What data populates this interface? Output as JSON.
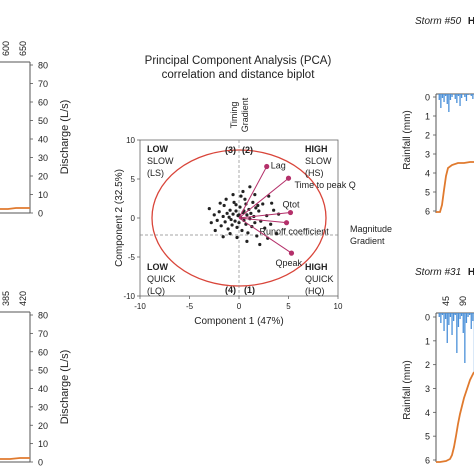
{
  "colors": {
    "orange": "#e07a2e",
    "blue": "#4a90d9",
    "circle": "#d9453a",
    "vector": "#b4306a",
    "dots": "#222222",
    "grid": "#cccccc"
  },
  "left_top": {
    "ticks_top": [
      "600",
      "650"
    ],
    "ylabel": "Discharge (L/s)",
    "yticks": [
      "80",
      "70",
      "60",
      "50",
      "40",
      "30",
      "20",
      "10",
      "0"
    ]
  },
  "left_bottom": {
    "ticks_top": [
      "385",
      "420"
    ],
    "ylabel": "Discharge (L/s)",
    "yticks": [
      "80",
      "70",
      "60",
      "50",
      "40",
      "30",
      "20",
      "10",
      "0"
    ]
  },
  "pca": {
    "title_line1": "Principal Component Analysis (PCA)",
    "title_line2": "correlation and distance biplot",
    "timing_line1": "Timing",
    "timing_line2": "Gradient",
    "magnitude_line1": "Magnitude",
    "magnitude_line2": "Gradient",
    "q_tl_1": "LOW",
    "q_tl_2": "SLOW",
    "q_tl_3": "(LS)",
    "q_tr_1": "HIGH",
    "q_tr_2": "SLOW",
    "q_tr_3": "(HS)",
    "q_bl_1": "LOW",
    "q_bl_2": "QUICK",
    "q_bl_3": "(LQ)",
    "q_br_1": "HIGH",
    "q_br_2": "QUICK",
    "q_br_3": "(HQ)",
    "num_tl": "(3)",
    "num_tr": "(2)",
    "num_bl": "(4)",
    "num_br": "(1)"
  },
  "right_top": {
    "storm": "Storm #50",
    "code": "HS",
    "ylabel": "Rainfall (mm)",
    "yticks": [
      "0",
      "1",
      "2",
      "3",
      "4",
      "5",
      "6"
    ]
  },
  "right_bottom": {
    "storm": "Storm #31",
    "code": "HQ",
    "ylabel": "Rainfall (mm)",
    "ticks_top": [
      "45",
      "90"
    ],
    "yticks": [
      "0",
      "1",
      "2",
      "3",
      "4",
      "5",
      "6"
    ]
  },
  "chart_data": {
    "type": "scatter",
    "xlabel": "Component 1 (47%)",
    "ylabel": "Component 2 (32.5%)",
    "xlim": [
      -10,
      10
    ],
    "ylim": [
      -10,
      10
    ],
    "xticks": [
      -10,
      -5,
      0,
      5,
      10
    ],
    "yticks": [
      10,
      5,
      0,
      -5,
      -10
    ],
    "grid": false,
    "vectors": [
      {
        "label": "Lag",
        "x": 2.8,
        "y": 6.6
      },
      {
        "label": "Time to peak Q",
        "x": 5.0,
        "y": 5.1
      },
      {
        "label": "Qtot",
        "x": 5.2,
        "y": 0.7
      },
      {
        "label": "Runoff coefficient",
        "x": 4.8,
        "y": -0.6
      },
      {
        "label": "Qpeak",
        "x": 5.3,
        "y": -4.5
      }
    ],
    "points": [
      [
        -3.0,
        1.2
      ],
      [
        -2.5,
        0.4
      ],
      [
        -2.2,
        -0.3
      ],
      [
        -2.0,
        0.8
      ],
      [
        -1.8,
        -1.0
      ],
      [
        -1.6,
        0.2
      ],
      [
        -1.5,
        1.6
      ],
      [
        -1.4,
        -0.5
      ],
      [
        -1.2,
        0.6
      ],
      [
        -1.1,
        -1.4
      ],
      [
        -1.0,
        0.1
      ],
      [
        -0.9,
        1.0
      ],
      [
        -0.8,
        -0.2
      ],
      [
        -0.7,
        -0.9
      ],
      [
        -0.6,
        0.5
      ],
      [
        -0.5,
        2.0
      ],
      [
        -0.4,
        -0.4
      ],
      [
        -0.3,
        0.9
      ],
      [
        -0.2,
        -1.2
      ],
      [
        -0.1,
        0.3
      ],
      [
        0.0,
        -0.6
      ],
      [
        0.1,
        1.4
      ],
      [
        0.2,
        0.0
      ],
      [
        0.3,
        -1.6
      ],
      [
        0.4,
        0.7
      ],
      [
        0.5,
        -0.3
      ],
      [
        0.6,
        2.4
      ],
      [
        0.7,
        -0.8
      ],
      [
        0.8,
        0.4
      ],
      [
        0.9,
        -1.9
      ],
      [
        1.0,
        1.1
      ],
      [
        1.1,
        -0.1
      ],
      [
        1.2,
        0.6
      ],
      [
        1.3,
        -1.1
      ],
      [
        1.4,
        2.0
      ],
      [
        1.5,
        0.2
      ],
      [
        1.6,
        -0.6
      ],
      [
        1.7,
        1.3
      ],
      [
        1.8,
        -2.3
      ],
      [
        2.0,
        0.9
      ],
      [
        2.2,
        -0.4
      ],
      [
        2.4,
        1.8
      ],
      [
        2.6,
        -1.3
      ],
      [
        2.8,
        0.3
      ],
      [
        3.0,
        2.8
      ],
      [
        3.2,
        -0.8
      ],
      [
        3.5,
        1.0
      ],
      [
        3.8,
        -2.0
      ],
      [
        4.0,
        0.5
      ],
      [
        -0.6,
        3.0
      ],
      [
        -1.3,
        2.4
      ],
      [
        0.4,
        3.4
      ],
      [
        1.1,
        4.0
      ],
      [
        -2.4,
        -1.6
      ],
      [
        -0.2,
        -2.5
      ],
      [
        0.8,
        -3.0
      ],
      [
        2.1,
        -3.4
      ],
      [
        -1.9,
        1.9
      ],
      [
        0.2,
        2.8
      ],
      [
        1.6,
        3.0
      ],
      [
        -0.9,
        -2.0
      ],
      [
        0.5,
        0.9
      ],
      [
        -0.3,
        1.7
      ],
      [
        1.9,
        1.6
      ],
      [
        -1.6,
        -2.4
      ],
      [
        2.9,
        -2.6
      ],
      [
        3.3,
        1.9
      ],
      [
        -2.8,
        -0.6
      ],
      [
        0.0,
        0.4
      ],
      [
        0.7,
        1.8
      ]
    ]
  }
}
